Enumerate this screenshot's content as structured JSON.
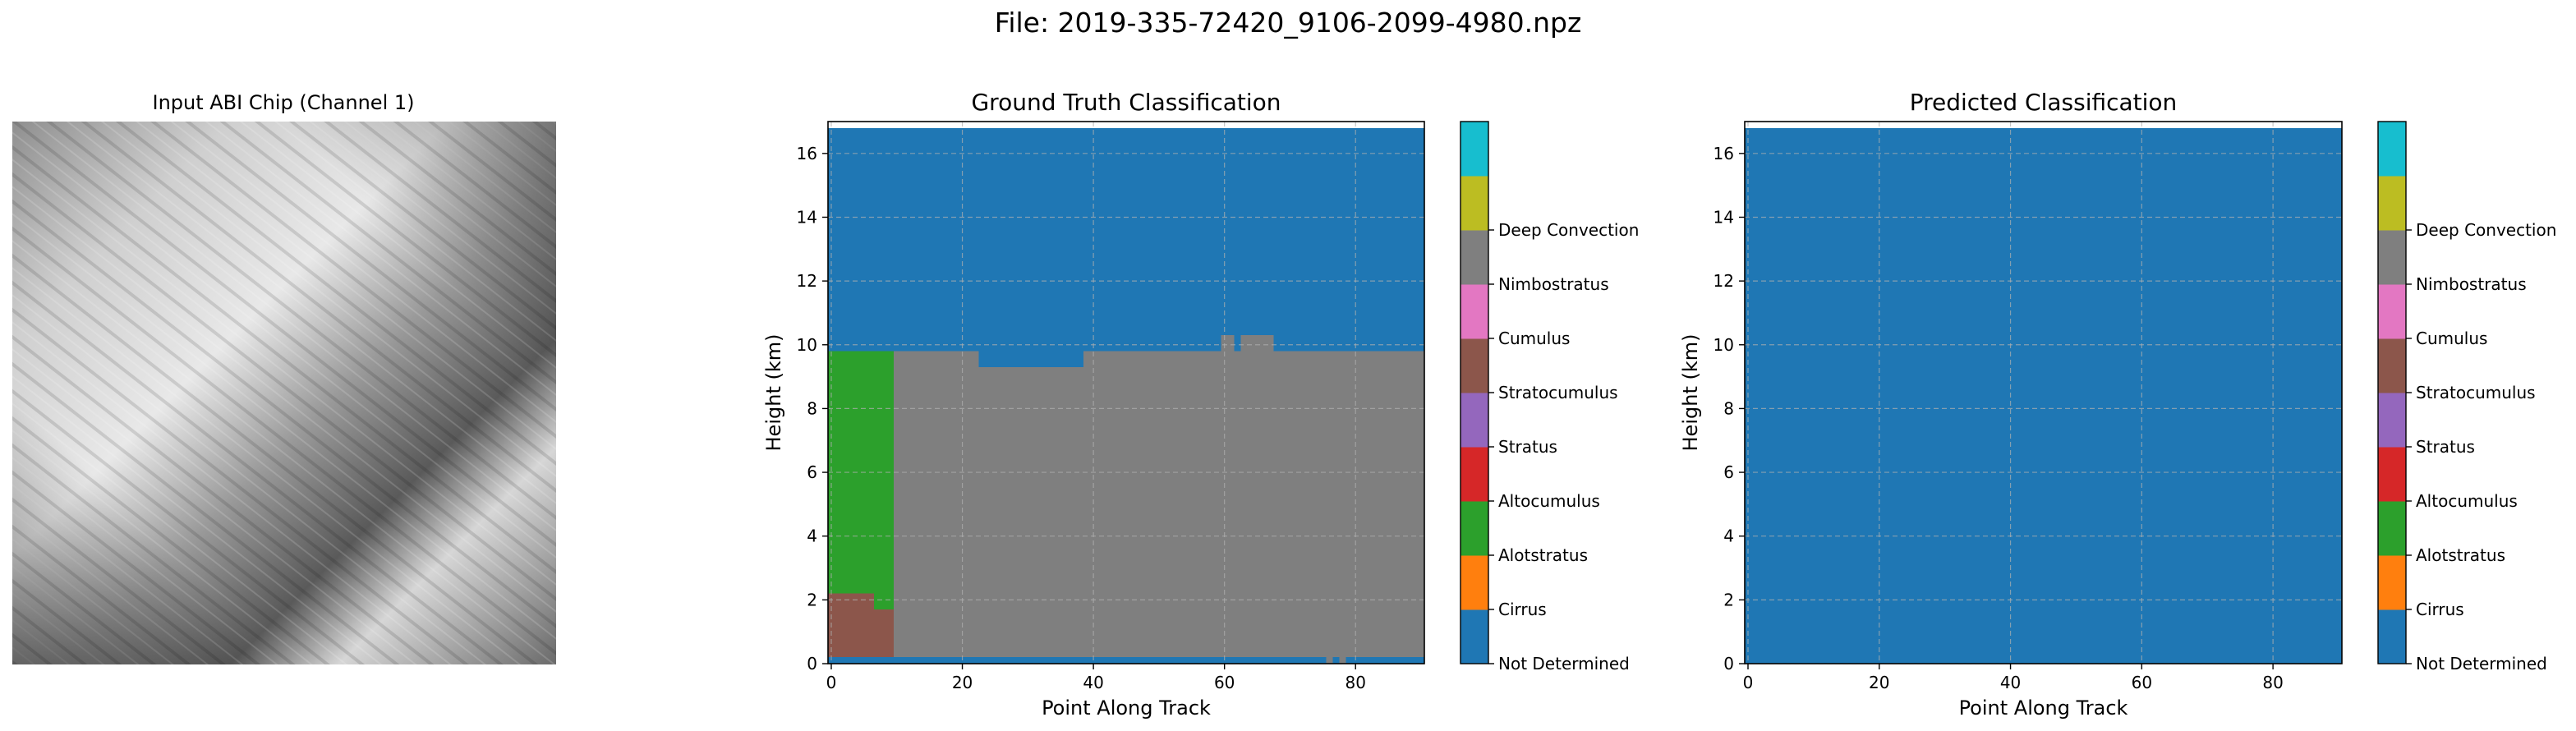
{
  "figure": {
    "suptitle": "File: 2019-335-72420_9106-2099-4980.npz",
    "input_panel": {
      "title": "Input ABI Chip (Channel 1)"
    }
  },
  "classes": [
    {
      "name": "Not Determined",
      "color": "#1f77b4"
    },
    {
      "name": "Cirrus",
      "color": "#ff7f0e"
    },
    {
      "name": "Alotstratus",
      "color": "#2ca02c"
    },
    {
      "name": "Altocumulus",
      "color": "#d62728"
    },
    {
      "name": "Stratus",
      "color": "#9467bd"
    },
    {
      "name": "Stratocumulus",
      "color": "#8c564b"
    },
    {
      "name": "Cumulus",
      "color": "#e377c2"
    },
    {
      "name": "Nimbostratus",
      "color": "#7f7f7f"
    },
    {
      "name": "Deep Convection",
      "color": "#bcbd22"
    },
    {
      "name": "",
      "color": "#17becf"
    }
  ],
  "chart_data": [
    {
      "type": "heatmap",
      "title": "Ground Truth Classification",
      "xlabel": "Point Along Track",
      "ylabel": "Height (km)",
      "xlim": [
        -0.5,
        90.5
      ],
      "ylim": [
        0,
        17
      ],
      "xticks": [
        0,
        20,
        40,
        60,
        80
      ],
      "yticks": [
        0,
        2,
        4,
        6,
        8,
        10,
        12,
        14,
        16
      ],
      "grid": true,
      "regions": [
        {
          "class": "Not Determined",
          "x": [
            -0.5,
            90.5
          ],
          "y": [
            0,
            16.8
          ]
        },
        {
          "class": "Nimbostratus",
          "x": [
            9.5,
            90.5
          ],
          "y": [
            0.2,
            9.8
          ]
        },
        {
          "class": "Not Determined",
          "x": [
            22.5,
            38.5
          ],
          "y": [
            9.3,
            9.8
          ]
        },
        {
          "class": "Nimbostratus",
          "x": [
            59.5,
            61.5
          ],
          "y": [
            9.8,
            10.3
          ]
        },
        {
          "class": "Nimbostratus",
          "x": [
            62.5,
            67.5
          ],
          "y": [
            9.8,
            10.3
          ]
        },
        {
          "class": "Alotstratus",
          "x": [
            -0.5,
            9.5
          ],
          "y": [
            1.7,
            9.8
          ]
        },
        {
          "class": "Stratocumulus",
          "x": [
            -0.5,
            6.5
          ],
          "y": [
            0.2,
            2.2
          ]
        },
        {
          "class": "Stratocumulus",
          "x": [
            6.5,
            9.5
          ],
          "y": [
            0.2,
            1.7
          ]
        },
        {
          "class": "Nimbostratus",
          "x": [
            75.5,
            76.5
          ],
          "y": [
            0,
            0.2
          ]
        },
        {
          "class": "Nimbostratus",
          "x": [
            77.5,
            78.5
          ],
          "y": [
            0,
            0.2
          ]
        }
      ],
      "colorbar_labels": [
        "Not Determined",
        "Cirrus",
        "Alotstratus",
        "Altocumulus",
        "Stratus",
        "Stratocumulus",
        "Cumulus",
        "Nimbostratus",
        "Deep Convection"
      ]
    },
    {
      "type": "heatmap",
      "title": "Predicted Classification",
      "xlabel": "Point Along Track",
      "ylabel": "Height (km)",
      "xlim": [
        -0.5,
        90.5
      ],
      "ylim": [
        0,
        17
      ],
      "xticks": [
        0,
        20,
        40,
        60,
        80
      ],
      "yticks": [
        0,
        2,
        4,
        6,
        8,
        10,
        12,
        14,
        16
      ],
      "grid": true,
      "regions": [
        {
          "class": "Not Determined",
          "x": [
            -0.5,
            90.5
          ],
          "y": [
            0,
            16.8
          ]
        }
      ],
      "colorbar_labels": [
        "Not Determined",
        "Cirrus",
        "Alotstratus",
        "Altocumulus",
        "Stratus",
        "Stratocumulus",
        "Cumulus",
        "Nimbostratus",
        "Deep Convection"
      ]
    }
  ]
}
